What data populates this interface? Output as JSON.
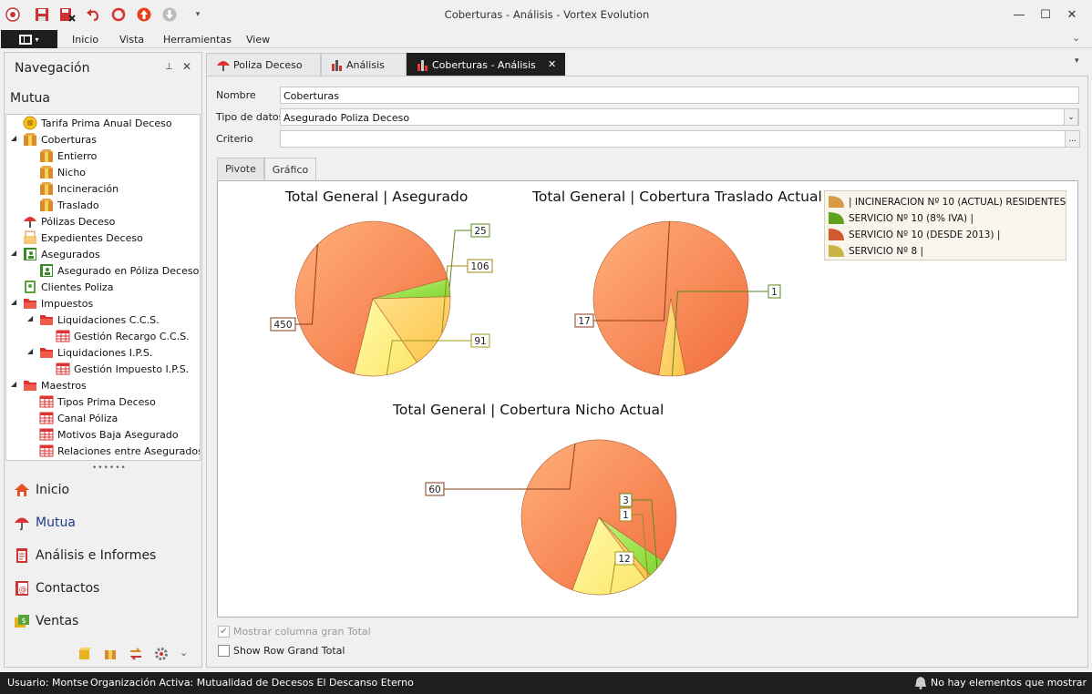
{
  "window": {
    "title": "Coberturas - Análisis - Vortex Evolution"
  },
  "menu": {
    "items": [
      "Inicio",
      "Vista",
      "Herramientas",
      "View"
    ]
  },
  "nav": {
    "title": "Navegación",
    "section": "Mutua",
    "tree": [
      {
        "label": "Tarifa Prima Anual Deceso",
        "icon": "coin-icon"
      },
      {
        "label": "Coberturas",
        "icon": "box-icon"
      },
      {
        "label": "Entierro",
        "icon": "box-icon"
      },
      {
        "label": "Nicho",
        "icon": "box-icon"
      },
      {
        "label": "Incineración",
        "icon": "box-icon"
      },
      {
        "label": "Traslado",
        "icon": "box-icon"
      },
      {
        "label": "Pólizas Deceso",
        "icon": "umbrella-icon"
      },
      {
        "label": "Expedientes Deceso",
        "icon": "folder-doc-icon"
      },
      {
        "label": "Asegurados",
        "icon": "person-card-icon"
      },
      {
        "label": "Asegurado en Póliza Deceso",
        "icon": "person-card-icon"
      },
      {
        "label": "Clientes Poliza",
        "icon": "contact-card-icon"
      },
      {
        "label": "Impuestos",
        "icon": "folder-icon"
      },
      {
        "label": "Liquidaciones C.C.S.",
        "icon": "folder-icon"
      },
      {
        "label": "Gestión Recargo C.C.S.",
        "icon": "table-icon"
      },
      {
        "label": "Liquidaciones I.P.S.",
        "icon": "folder-icon"
      },
      {
        "label": "Gestión Impuesto I.P.S.",
        "icon": "table-icon"
      },
      {
        "label": "Maestros",
        "icon": "folder-icon"
      },
      {
        "label": "Tipos Prima Deceso",
        "icon": "table-icon"
      },
      {
        "label": "Canal Póliza",
        "icon": "table-icon"
      },
      {
        "label": "Motivos Baja Asegurado",
        "icon": "table-icon"
      },
      {
        "label": "Relaciones entre Asegurados",
        "icon": "table-icon"
      }
    ],
    "buttons": [
      "Inicio",
      "Mutua",
      "Análisis e Informes",
      "Contactos",
      "Ventas"
    ]
  },
  "tabs": [
    {
      "label": "Poliza Deceso"
    },
    {
      "label": "Análisis"
    },
    {
      "label": "Coberturas - Análisis",
      "active": true
    }
  ],
  "form": {
    "nombre_label": "Nombre",
    "nombre_value": "Coberturas",
    "tipo_label": "Tipo de datos",
    "tipo_value": "Asegurado Poliza Deceso",
    "criterio_label": "Criterio",
    "criterio_value": "",
    "criterio_btn": "..."
  },
  "subtabs": {
    "pivote": "Pivote",
    "grafico": "Gráfico"
  },
  "legend": [
    {
      "label": " | INCINERACION Nº 10 (ACTUAL) RESIDENTES",
      "color": "#d79b45"
    },
    {
      "label": "SERVICIO Nº 10 (8% IVA) |",
      "color": "#5fa21e"
    },
    {
      "label": "SERVICIO Nº 10 (DESDE 2013) |",
      "color": "#d05a33"
    },
    {
      "label": "SERVICIO Nº 8 |",
      "color": "#c8b545"
    }
  ],
  "chart_data": [
    {
      "type": "pie",
      "title": "Total General | Asegurado",
      "values": [
        450,
        25,
        106,
        91
      ],
      "colors": [
        "#f58a5a",
        "#9ee84a",
        "#ffd25e",
        "#fff07a"
      ]
    },
    {
      "type": "pie",
      "title": "Total General | Cobertura Traslado Actual",
      "values": [
        17,
        1
      ],
      "colors": [
        "#f58a5a",
        "#ffd25e"
      ]
    },
    {
      "type": "pie",
      "title": "Total General | Cobertura Nicho Actual",
      "values": [
        60,
        3,
        1,
        12
      ],
      "colors": [
        "#f58a5a",
        "#9ee84a",
        "#ffd25e",
        "#fff07a"
      ]
    }
  ],
  "options": {
    "grand_total_col": "Mostrar columna gran Total",
    "row_grand_total": "Show Row Grand Total"
  },
  "status": {
    "user": "Usuario: Montse",
    "org": "Organización Activa: Mutualidad de Decesos El Descanso Eterno",
    "notif": "No hay elementos que mostrar"
  }
}
